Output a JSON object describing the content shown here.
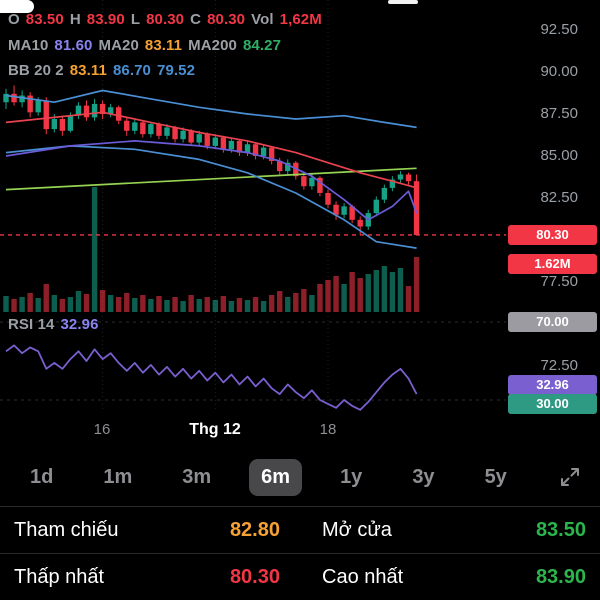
{
  "legend": {
    "ohlc": {
      "o_label": "O",
      "o": "83.50",
      "h_label": "H",
      "h": "83.90",
      "l_label": "L",
      "l": "80.30",
      "c_label": "C",
      "c": "80.30",
      "vol_label": "Vol",
      "vol": "1,62M"
    },
    "ma": {
      "ma10_label": "MA10",
      "ma10": "81.60",
      "ma20_label": "MA20",
      "ma20": "83.11",
      "ma200_label": "MA200",
      "ma200": "84.27"
    },
    "bb": {
      "label": "BB 20 2",
      "mid": "83.11",
      "upper": "86.70",
      "lower": "79.52"
    }
  },
  "rsi_legend": {
    "label": "RSI 14",
    "value": "32.96"
  },
  "y_axis": {
    "badges": [
      {
        "text": "80.30",
        "bg": "#f23645"
      },
      {
        "text": "1.62M",
        "bg": "#f23645"
      },
      {
        "text": "70.00",
        "bg": "#9b9ba1"
      },
      {
        "text": "32.96",
        "bg": "#7a5fd0"
      },
      {
        "text": "30.00",
        "bg": "#2f9a84"
      }
    ]
  },
  "x_axis": [
    "16",
    "Thg 12",
    "18"
  ],
  "range_selector": {
    "options": [
      "1d",
      "1m",
      "3m",
      "6m",
      "1y",
      "3y",
      "5y"
    ],
    "selected": "6m"
  },
  "summary": {
    "rows": [
      [
        {
          "label": "Tham chiếu",
          "value": "82.80",
          "color": "#f5a133"
        },
        {
          "label": "Mở cửa",
          "value": "83.50",
          "color": "#2bb54c"
        }
      ],
      [
        {
          "label": "Thấp nhất",
          "value": "80.30",
          "color": "#f23645"
        },
        {
          "label": "Cao nhất",
          "value": "83.90",
          "color": "#2bb54c"
        }
      ]
    ]
  },
  "chart_data": {
    "type": "candlestick+volume+rsi",
    "title": "",
    "y_ticks": [
      "92.50",
      "90.00",
      "87.50",
      "85.00",
      "82.50",
      "77.50",
      "72.50"
    ],
    "x_labels": [
      "16",
      "Thg 12",
      "18"
    ],
    "grid_idx": [
      12,
      26,
      40
    ],
    "price_line": 80.3,
    "colors": {
      "up": "#17a287",
      "down": "#f23645"
    },
    "candles": [
      [
        88.2,
        89.0,
        87.8,
        88.7
      ],
      [
        88.7,
        89.2,
        88.0,
        88.2
      ],
      [
        88.2,
        88.9,
        87.9,
        88.6
      ],
      [
        88.6,
        88.8,
        87.3,
        87.6
      ],
      [
        87.6,
        88.5,
        87.4,
        88.3
      ],
      [
        88.3,
        88.5,
        86.3,
        86.6
      ],
      [
        86.6,
        87.5,
        86.4,
        87.2
      ],
      [
        87.2,
        87.4,
        86.2,
        86.5
      ],
      [
        86.5,
        87.6,
        86.4,
        87.4
      ],
      [
        87.4,
        88.2,
        87.2,
        88.0
      ],
      [
        88.0,
        88.3,
        87.1,
        87.3
      ],
      [
        87.3,
        88.4,
        87.1,
        88.1
      ],
      [
        88.1,
        88.3,
        87.2,
        87.5
      ],
      [
        87.5,
        88.1,
        87.3,
        87.9
      ],
      [
        87.9,
        88.0,
        86.9,
        87.1
      ],
      [
        87.1,
        87.3,
        86.2,
        86.5
      ],
      [
        86.5,
        87.2,
        86.3,
        87.0
      ],
      [
        87.0,
        87.1,
        86.1,
        86.3
      ],
      [
        86.3,
        87.0,
        86.1,
        86.9
      ],
      [
        86.9,
        87.0,
        86.0,
        86.2
      ],
      [
        86.2,
        86.9,
        86.0,
        86.7
      ],
      [
        86.7,
        86.8,
        85.8,
        86.0
      ],
      [
        86.0,
        86.7,
        85.8,
        86.5
      ],
      [
        86.5,
        86.6,
        85.6,
        85.8
      ],
      [
        85.8,
        86.5,
        85.6,
        86.3
      ],
      [
        86.3,
        86.4,
        85.4,
        85.6
      ],
      [
        85.6,
        86.3,
        85.4,
        86.1
      ],
      [
        86.1,
        86.2,
        85.2,
        85.4
      ],
      [
        85.4,
        86.1,
        85.2,
        85.9
      ],
      [
        85.9,
        86.0,
        85.0,
        85.2
      ],
      [
        85.2,
        85.9,
        85.0,
        85.7
      ],
      [
        85.7,
        85.8,
        84.8,
        85.0
      ],
      [
        85.0,
        85.7,
        84.8,
        85.5
      ],
      [
        85.5,
        85.6,
        84.5,
        84.7
      ],
      [
        84.7,
        84.9,
        83.9,
        84.1
      ],
      [
        84.1,
        84.8,
        83.9,
        84.6
      ],
      [
        84.6,
        84.7,
        83.6,
        83.8
      ],
      [
        83.8,
        84.0,
        83.0,
        83.2
      ],
      [
        83.2,
        83.9,
        83.0,
        83.7
      ],
      [
        83.7,
        83.8,
        82.6,
        82.8
      ],
      [
        82.8,
        83.0,
        81.9,
        82.1
      ],
      [
        82.1,
        82.3,
        81.2,
        81.5
      ],
      [
        81.5,
        82.2,
        81.3,
        82.0
      ],
      [
        82.0,
        82.1,
        81.0,
        81.2
      ],
      [
        81.2,
        81.4,
        80.3,
        80.8
      ],
      [
        80.8,
        81.8,
        80.6,
        81.6
      ],
      [
        81.6,
        82.6,
        81.4,
        82.4
      ],
      [
        82.4,
        83.3,
        82.2,
        83.1
      ],
      [
        83.1,
        83.8,
        82.9,
        83.6
      ],
      [
        83.6,
        84.1,
        83.4,
        83.9
      ],
      [
        83.9,
        84.0,
        83.3,
        83.5
      ],
      [
        83.5,
        83.9,
        80.3,
        80.3
      ]
    ],
    "volumes": [
      16,
      13,
      15,
      19,
      14,
      28,
      17,
      13,
      15,
      21,
      18,
      125,
      22,
      17,
      15,
      19,
      14,
      17,
      13,
      16,
      12,
      15,
      11,
      17,
      13,
      15,
      12,
      16,
      11,
      14,
      12,
      15,
      11,
      17,
      21,
      15,
      19,
      23,
      17,
      28,
      32,
      36,
      28,
      40,
      34,
      38,
      42,
      46,
      40,
      44,
      26,
      55
    ],
    "overlays": {
      "ma200": {
        "color": "#96d353",
        "points": [
          [
            0,
            83.0
          ],
          [
            51,
            84.27
          ]
        ]
      },
      "bb_upper": {
        "color": "#4a8fd4",
        "points": [
          [
            0,
            88.6
          ],
          [
            6,
            88.2
          ],
          [
            12,
            88.9
          ],
          [
            18,
            88.4
          ],
          [
            24,
            87.9
          ],
          [
            30,
            87.5
          ],
          [
            36,
            87.2
          ],
          [
            42,
            87.4
          ],
          [
            47,
            87.0
          ],
          [
            51,
            86.7
          ]
        ]
      },
      "bb_lower": {
        "color": "#4a8fd4",
        "points": [
          [
            0,
            85.2
          ],
          [
            8,
            85.6
          ],
          [
            16,
            85.4
          ],
          [
            24,
            84.8
          ],
          [
            30,
            84.0
          ],
          [
            36,
            82.8
          ],
          [
            42,
            81.2
          ],
          [
            46,
            79.9
          ],
          [
            51,
            79.52
          ]
        ]
      },
      "ma20": {
        "color": "#e8434f",
        "points": [
          [
            0,
            87.0
          ],
          [
            6,
            87.3
          ],
          [
            12,
            87.6
          ],
          [
            18,
            87.0
          ],
          [
            24,
            86.4
          ],
          [
            30,
            85.9
          ],
          [
            36,
            85.2
          ],
          [
            40,
            84.6
          ],
          [
            44,
            84.0
          ],
          [
            48,
            83.5
          ],
          [
            51,
            83.11
          ]
        ]
      },
      "ma10": {
        "color": "#6a5bd8",
        "points": [
          [
            0,
            85.0
          ],
          [
            8,
            85.6
          ],
          [
            16,
            85.9
          ],
          [
            24,
            85.6
          ],
          [
            30,
            85.2
          ],
          [
            34,
            84.7
          ],
          [
            38,
            83.8
          ],
          [
            42,
            82.4
          ],
          [
            45,
            81.2
          ],
          [
            48,
            82.0
          ],
          [
            50,
            82.9
          ],
          [
            51,
            81.6
          ]
        ]
      }
    },
    "rsi": {
      "color": "#7a5fd0",
      "levels": [
        70,
        30
      ],
      "current": 32.96,
      "values": [
        55,
        58,
        54,
        57,
        55,
        46,
        49,
        46,
        51,
        55,
        50,
        56,
        51,
        54,
        49,
        45,
        49,
        44,
        48,
        43,
        47,
        42,
        46,
        41,
        45,
        40,
        44,
        39,
        43,
        38,
        42,
        37,
        41,
        36,
        33,
        38,
        34,
        31,
        35,
        30,
        28,
        26,
        30,
        27,
        25,
        29,
        34,
        39,
        43,
        46,
        41,
        33
      ]
    }
  }
}
